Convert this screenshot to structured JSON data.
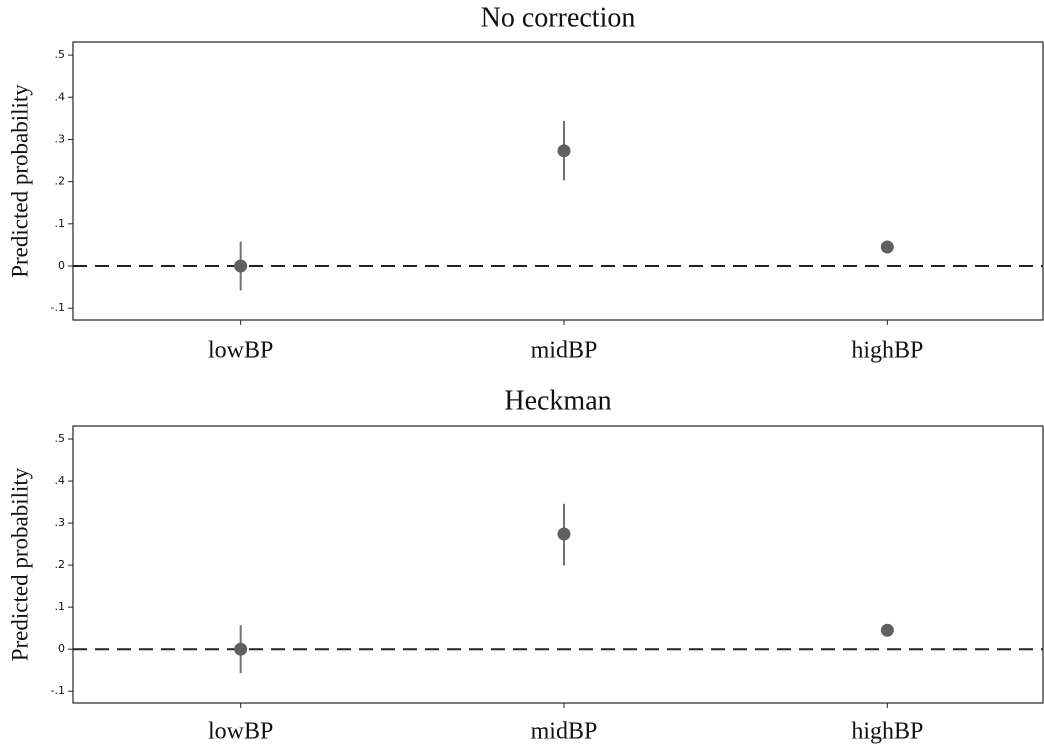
{
  "chart_data": [
    {
      "type": "dot",
      "title": "No correction",
      "ylabel": "Predicted probability",
      "categories": [
        "lowBP",
        "midBP",
        "highBP"
      ],
      "values": [
        0,
        0.273,
        0.045
      ],
      "lower": [
        -0.058,
        0.203,
        0.041
      ],
      "upper": [
        0.058,
        0.344,
        0.049
      ],
      "color": "#606060",
      "reference_line": 0,
      "ylim": [
        -0.128,
        0.531
      ],
      "yticks": [
        {
          "value": -0.1,
          "label": "-.1"
        },
        0,
        {
          "value": 0.1,
          "label": ".1"
        },
        {
          "value": 0.2,
          "label": ".2"
        },
        {
          "value": 0.3,
          "label": ".3"
        },
        {
          "value": 0.4,
          "label": ".4"
        },
        {
          "value": 0.5,
          "label": ".5"
        }
      ]
    },
    {
      "type": "dot",
      "title": "Heckman",
      "ylabel": "Predicted probability",
      "categories": [
        "lowBP",
        "midBP",
        "highBP"
      ],
      "values": [
        0,
        0.274,
        0.045
      ],
      "lower": [
        -0.057,
        0.199,
        0.041
      ],
      "upper": [
        0.057,
        0.346,
        0.049
      ],
      "color": "#606060",
      "reference_line": 0,
      "ylim": [
        -0.128,
        0.531
      ],
      "yticks": [
        {
          "value": -0.1,
          "label": "-.1"
        },
        0,
        {
          "value": 0.1,
          "label": ".1"
        },
        {
          "value": 0.2,
          "label": ".2"
        },
        {
          "value": 0.3,
          "label": ".3"
        },
        {
          "value": 0.4,
          "label": ".4"
        },
        {
          "value": 0.5,
          "label": ".5"
        }
      ]
    }
  ]
}
